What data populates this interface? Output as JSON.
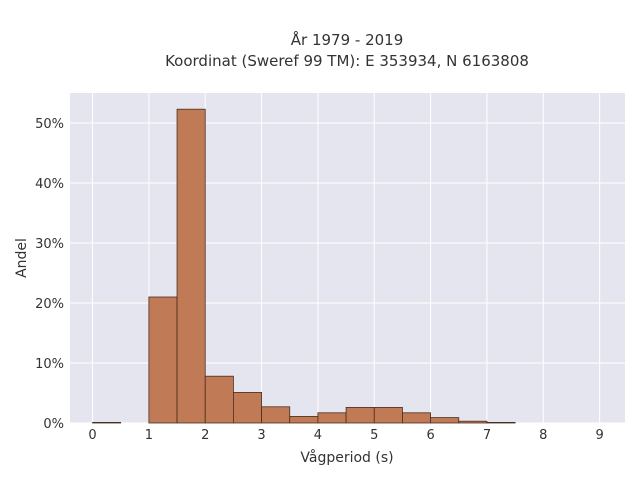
{
  "chart_data": {
    "type": "bar",
    "title": "År 1979 - 2019",
    "subtitle": "Koordinat (Sweref 99 TM): E 353934, N 6163808",
    "xlabel": "Vågperiod (s)",
    "ylabel": "Andel",
    "xlim": [
      -0.4,
      9.45
    ],
    "ylim": [
      0,
      55
    ],
    "x_ticks": [
      "0",
      "1",
      "2",
      "3",
      "4",
      "5",
      "6",
      "7",
      "8",
      "9"
    ],
    "y_ticks": [
      "0%",
      "10%",
      "20%",
      "30%",
      "40%",
      "50%"
    ],
    "bin_width": 0.5,
    "bins": [
      {
        "start": 0.0,
        "value": 0.1
      },
      {
        "start": 1.0,
        "value": 21.0
      },
      {
        "start": 1.5,
        "value": 52.3
      },
      {
        "start": 2.0,
        "value": 7.8
      },
      {
        "start": 2.5,
        "value": 5.1
      },
      {
        "start": 3.0,
        "value": 2.7
      },
      {
        "start": 3.5,
        "value": 1.1
      },
      {
        "start": 4.0,
        "value": 1.7
      },
      {
        "start": 4.5,
        "value": 2.6
      },
      {
        "start": 5.0,
        "value": 2.6
      },
      {
        "start": 5.5,
        "value": 1.7
      },
      {
        "start": 6.0,
        "value": 0.9
      },
      {
        "start": 6.5,
        "value": 0.3
      },
      {
        "start": 7.0,
        "value": 0.1
      }
    ],
    "grid": true,
    "colors": {
      "bar_fill": "#c07a55",
      "bar_stroke": "#4a2e1e",
      "plot_bg": "#e5e5ef",
      "grid": "#ffffff",
      "text": "#333333"
    }
  }
}
